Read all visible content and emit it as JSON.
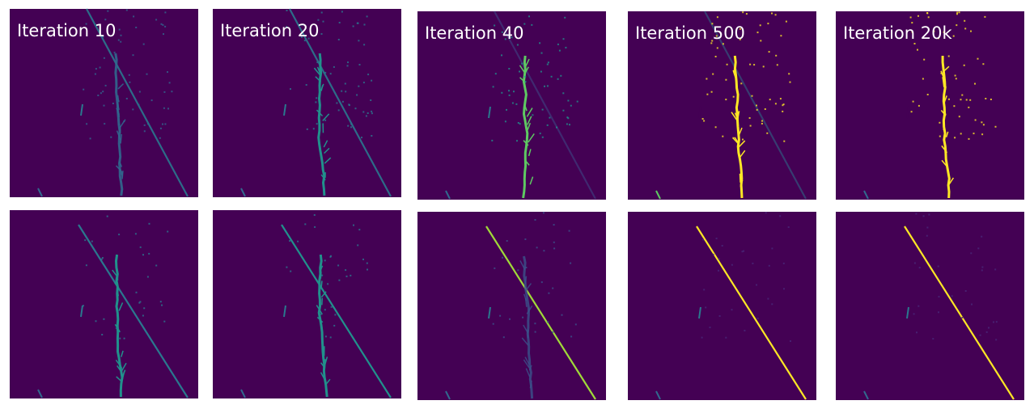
{
  "panels": [
    {
      "label": "Iteration 10"
    },
    {
      "label": "Iteration 20"
    },
    {
      "label": "Iteration 40"
    },
    {
      "label": "Iteration 500"
    },
    {
      "label": "Iteration 20k"
    }
  ]
}
